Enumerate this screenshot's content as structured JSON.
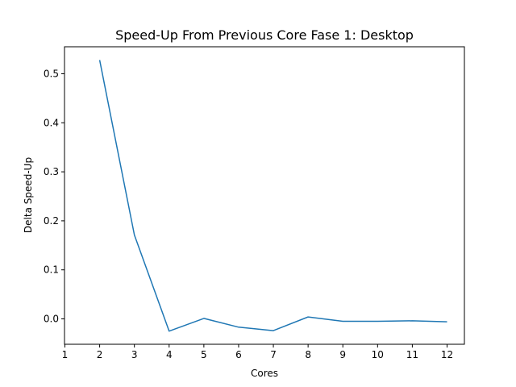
{
  "chart_data": {
    "type": "line",
    "title": "Speed-Up From Previous Core Fase 1: Desktop",
    "xlabel": "Cores",
    "ylabel": "Delta Speed-Up",
    "xlim": [
      1,
      12
    ],
    "ylim": [
      -0.05,
      0.55
    ],
    "xticks": [
      1,
      2,
      3,
      4,
      5,
      6,
      7,
      8,
      9,
      10,
      11,
      12
    ],
    "yticks": [
      0.0,
      0.1,
      0.2,
      0.3,
      0.4,
      0.5
    ],
    "ytick_labels": [
      "0.0",
      "0.1",
      "0.2",
      "0.3",
      "0.4",
      "0.5"
    ],
    "grid": false,
    "series": [
      {
        "color": "#1f77b4",
        "x": [
          2,
          3,
          4,
          5,
          6,
          7,
          8,
          9,
          10,
          11,
          12
        ],
        "y": [
          0.528,
          0.171,
          -0.025,
          0.001,
          -0.017,
          -0.024,
          0.004,
          -0.005,
          -0.005,
          -0.004,
          -0.006
        ]
      }
    ]
  }
}
